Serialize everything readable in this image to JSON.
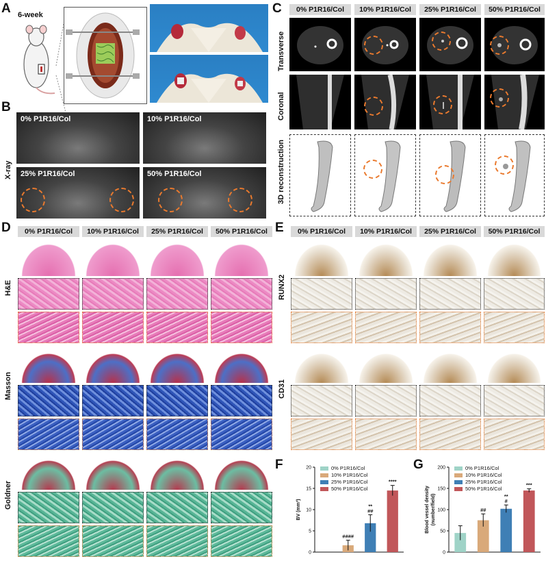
{
  "panels": {
    "A": {
      "letter": "A",
      "age_label": "6-week"
    },
    "B": {
      "letter": "B",
      "row_label": "X-ray"
    },
    "C": {
      "letter": "C",
      "row_labels": [
        "Transverse",
        "Coronal",
        "3D reconstruction"
      ]
    },
    "D": {
      "letter": "D",
      "row_labels": [
        "H&E",
        "Masson",
        "Goldner"
      ]
    },
    "E": {
      "letter": "E",
      "row_labels": [
        "RUNX2",
        "CD31"
      ]
    },
    "F": {
      "letter": "F"
    },
    "G": {
      "letter": "G"
    }
  },
  "groups": [
    "0% P1R16/Col",
    "10% P1R16/Col",
    "25% P1R16/Col",
    "50% P1R16/Col"
  ],
  "colors": {
    "g0": "#9fd3c7",
    "g1": "#d9a97a",
    "g2": "#3f7fb5",
    "g3": "#c1575a",
    "defect_circle": "#ea7a2e",
    "header_bg": "#d9d9d9"
  },
  "chart_data": [
    {
      "panel": "F",
      "type": "bar",
      "categories": [
        "0% P1R16/Col",
        "10% P1R16/Col",
        "25% P1R16/Col",
        "50% P1R16/Col"
      ],
      "values": [
        0,
        1.6,
        6.8,
        14.5
      ],
      "errors": [
        0,
        1.2,
        2.0,
        1.2
      ],
      "ylabel": "BV (mm³)",
      "ylim": [
        0,
        20
      ],
      "yticks": [
        "0",
        "5",
        "10",
        "15",
        "20"
      ],
      "annotations": [
        "",
        "####",
        "**\n##",
        "****"
      ],
      "legend": [
        "0% P1R16/Col",
        "10% P1R16/Col",
        "25% P1R16/Col",
        "50% P1R16/Col"
      ],
      "legend_position": "top-left"
    },
    {
      "panel": "G",
      "type": "bar",
      "categories": [
        "0% P1R16/Col",
        "10% P1R16/Col",
        "25% P1R16/Col",
        "50% P1R16/Col"
      ],
      "values": [
        45,
        75,
        102,
        145
      ],
      "errors": [
        17,
        15,
        9,
        4
      ],
      "ylabel": "Blood vessel density\n(number/field)",
      "ylim": [
        0,
        200
      ],
      "yticks": [
        "0",
        "50",
        "100",
        "150",
        "200"
      ],
      "annotations": [
        "",
        "##",
        "**\n#",
        "***"
      ],
      "legend": [
        "0% P1R16/Col",
        "10% P1R16/Col",
        "25% P1R16/Col",
        "50% P1R16/Col"
      ],
      "legend_position": "top-left"
    }
  ]
}
